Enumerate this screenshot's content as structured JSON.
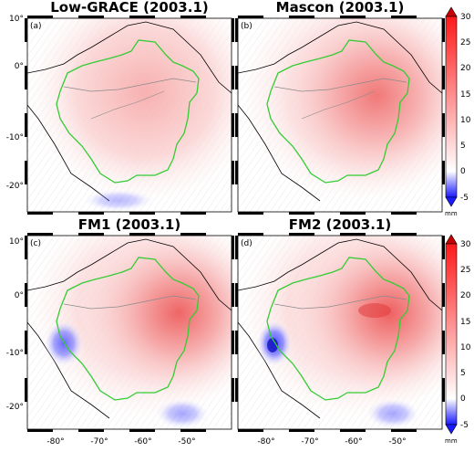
{
  "panels": [
    {
      "id": "a",
      "title": "Low-GRACE (2003.1)",
      "label": "(a)"
    },
    {
      "id": "b",
      "title": "Mascon (2003.1)",
      "label": "(b)"
    },
    {
      "id": "c",
      "title": "FM1 (2003.1)",
      "label": "(c)"
    },
    {
      "id": "d",
      "title": "FM2 (2003.1)",
      "label": "(d)"
    }
  ],
  "lat_ticks": [
    "10°",
    "0°",
    "-10°",
    "-20°"
  ],
  "lon_ticks": [
    "-80°",
    "-70°",
    "-60°",
    "-50°"
  ],
  "colorbar": {
    "unit": "mm",
    "ticks": [
      "30",
      "25",
      "20",
      "15",
      "10",
      "5",
      "0",
      "-5"
    ],
    "min": -5,
    "max": 30,
    "colors": {
      "low": "#1a1aff",
      "zero": "#ffffff",
      "high": "#ff0000",
      "top": "#c80000"
    }
  },
  "colors": {
    "basin_outline": "#33cc33",
    "coastline": "#000000",
    "river": "#8a8a8a"
  }
}
